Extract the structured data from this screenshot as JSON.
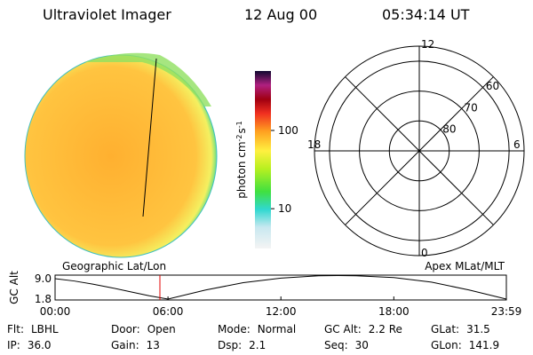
{
  "header": {
    "title": "Ultraviolet Imager",
    "date": "12 Aug 00",
    "time": "05:34:14 UT"
  },
  "colorbar": {
    "label": [
      "photon cm",
      "-2",
      "s",
      "-1"
    ],
    "log": true,
    "lim": [
      3.1,
      575
    ],
    "ticks": [
      100,
      10
    ]
  },
  "polar": {
    "lat_lim": [
      90,
      55
    ],
    "lat_ticks": [
      80,
      70,
      60
    ],
    "mlt_ticks": [
      12,
      18,
      6,
      0
    ]
  },
  "orbit_plot": {
    "left_title": "Geographic Lat/Lon",
    "right_title": "Apex MLat/MLT",
    "ylabel": "GC Alt",
    "ylim": [
      1.5,
      10.25
    ],
    "yticks": [
      {
        "value": 9.0,
        "label": "9.0"
      },
      {
        "value": 1.8,
        "label": "1.8"
      }
    ],
    "xlim": [
      0,
      23.98
    ],
    "xticks": [
      {
        "value": 0,
        "label": "00:00"
      },
      {
        "value": 6,
        "label": "06:00"
      },
      {
        "value": 12,
        "label": "12:00"
      },
      {
        "value": 18,
        "label": "18:00"
      },
      {
        "value": 23.98,
        "label": "23:59"
      }
    ],
    "x": [
      0,
      1,
      2,
      3,
      4,
      5,
      6,
      8,
      10,
      12,
      14,
      15,
      16,
      18,
      20,
      22,
      23.98
    ],
    "altitude": [
      9.0,
      8.2,
      7.1,
      5.8,
      4.4,
      3.0,
      1.8,
      5.0,
      7.6,
      9.2,
      10.0,
      10.1,
      10.0,
      9.4,
      7.8,
      5.0,
      1.8
    ],
    "marker": 5.57,
    "marker_color": "#e00000"
  },
  "info": [
    [
      [
        "Flt:",
        "LBHL"
      ],
      [
        "Door:",
        "Open"
      ],
      [
        "Mode:",
        "Normal"
      ],
      [
        "GC Alt:",
        "2.2 Re"
      ],
      [
        "GLat:",
        "31.5"
      ]
    ],
    [
      [
        "IP:",
        "36.0"
      ],
      [
        "Gain:",
        "13"
      ],
      [
        "Dsp:",
        "2.1"
      ],
      [
        "Seq:",
        "30"
      ],
      [
        "GLon:",
        "141.9"
      ]
    ]
  ]
}
